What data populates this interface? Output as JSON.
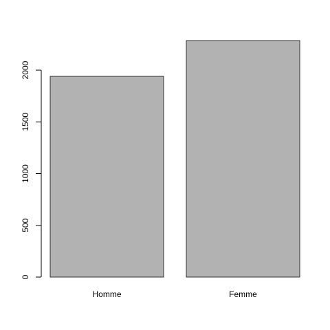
{
  "chart_data": {
    "type": "bar",
    "categories": [
      "Homme",
      "Femme"
    ],
    "values": [
      1940,
      2286
    ],
    "color": "#b2b2b2",
    "ylim": [
      0,
      2286
    ],
    "yticks": [
      0,
      500,
      1000,
      1500,
      2000
    ]
  }
}
